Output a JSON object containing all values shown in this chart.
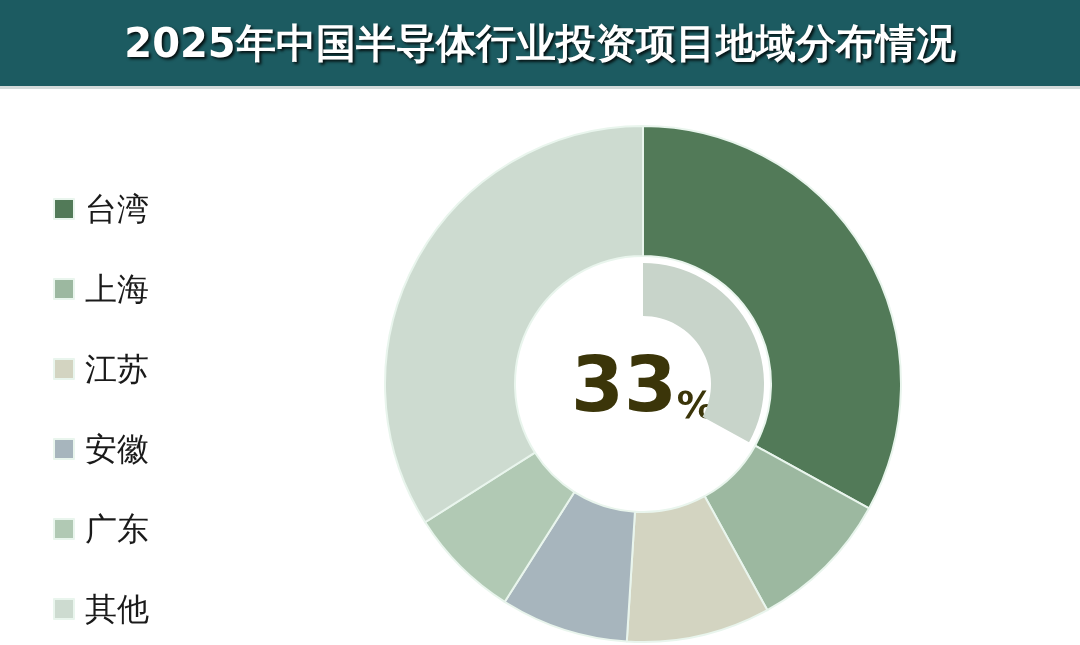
{
  "chart_data": [
    {
      "type": "donut",
      "title": "2025年中国半导体行业投资项目地域分布情况",
      "categories": [
        "台湾",
        "上海",
        "江苏",
        "安徽",
        "广东",
        "其他"
      ],
      "values": [
        33,
        9,
        9,
        8,
        7,
        34
      ],
      "colors": [
        "#527a58",
        "#9cb8a0",
        "#d3d4c1",
        "#a7b5bd",
        "#b1c9b4",
        "#cddbd0"
      ],
      "legend": "left"
    },
    {
      "type": "other",
      "values": [
        33
      ],
      "color": "#c8d4ca",
      "value_labels": [
        "33%"
      ]
    }
  ]
}
